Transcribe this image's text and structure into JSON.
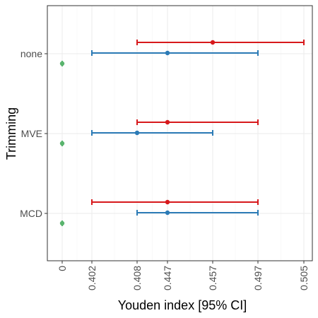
{
  "chart_data": {
    "type": "errorbar",
    "xlabel": "Youden index [95% CI]",
    "ylabel": "Trimming",
    "x_tick_labels": [
      "0",
      "0.402",
      "0.408",
      "0.447",
      "0.457",
      "0.497",
      "0.505"
    ],
    "y_categories": [
      "none",
      "MVE",
      "MCD"
    ],
    "grid": true,
    "legend": "none",
    "series": [
      {
        "color": "#d7191c",
        "points": [
          {
            "category": "none",
            "estimate": 0.457,
            "lower": 0.408,
            "upper": 0.505
          },
          {
            "category": "MVE",
            "estimate": 0.447,
            "lower": 0.408,
            "upper": 0.497
          },
          {
            "category": "MCD",
            "estimate": 0.447,
            "lower": 0.402,
            "upper": 0.497
          }
        ]
      },
      {
        "color": "#2c7bb6",
        "points": [
          {
            "category": "none",
            "estimate": 0.447,
            "lower": 0.402,
            "upper": 0.497
          },
          {
            "category": "MVE",
            "estimate": 0.408,
            "lower": 0.402,
            "upper": 0.457
          },
          {
            "category": "MCD",
            "estimate": 0.447,
            "lower": 0.408,
            "upper": 0.497
          }
        ]
      },
      {
        "color": "#5ab46e",
        "points": [
          {
            "category": "none",
            "estimate": 0
          },
          {
            "category": "MVE",
            "estimate": 0
          },
          {
            "category": "MCD",
            "estimate": 0
          }
        ]
      }
    ]
  }
}
